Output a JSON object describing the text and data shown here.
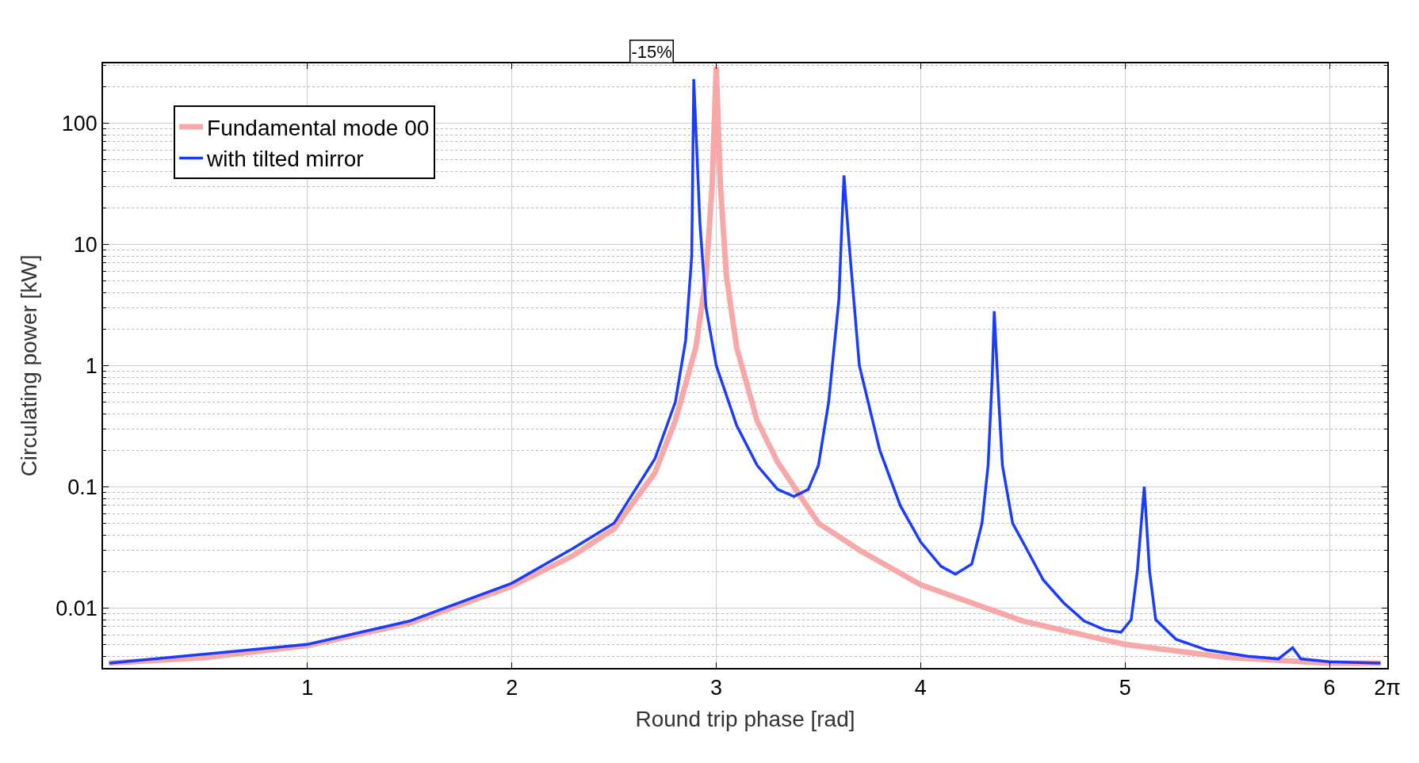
{
  "chart_data": {
    "type": "line",
    "xlabel": "Round trip phase [rad]",
    "ylabel": "Circulating power [kW]",
    "log": "y",
    "grid": true,
    "legend": "top left",
    "line_style": "solid",
    "marker": "none",
    "xlim": [
      0,
      6.283
    ],
    "xticks": [
      1,
      2,
      3,
      4,
      5,
      6,
      {
        "value": 6.283,
        "label": "2π"
      }
    ],
    "ylim": [
      0.0032,
      310
    ],
    "yticks": [
      0.01,
      0.1,
      1,
      10,
      100
    ],
    "annotations": [
      "-15%"
    ],
    "series": [
      {
        "name": "Fundamental mode 00",
        "color": "#f7a8a8",
        "x": [
          0.03,
          0.5,
          1.0,
          1.5,
          2.0,
          2.3,
          2.5,
          2.7,
          2.8,
          2.9,
          2.95,
          2.98,
          3.0,
          3.02,
          3.05,
          3.1,
          3.2,
          3.3,
          3.5,
          3.7,
          4.0,
          4.5,
          5.0,
          5.5,
          6.0,
          6.25
        ],
        "values": [
          0.0035,
          0.0039,
          0.0049,
          0.0075,
          0.0151,
          0.027,
          0.045,
          0.13,
          0.35,
          1.4,
          5.4,
          31,
          290,
          31,
          5.4,
          1.4,
          0.35,
          0.16,
          0.05,
          0.03,
          0.0155,
          0.0078,
          0.005,
          0.0039,
          0.0035,
          0.0035
        ]
      },
      {
        "name": "with tilted mirror",
        "color": "#1a3cff",
        "x": [
          0.03,
          1.0,
          1.5,
          2.0,
          2.3,
          2.5,
          2.7,
          2.8,
          2.85,
          2.88,
          2.89,
          2.92,
          2.95,
          3.0,
          3.1,
          3.2,
          3.3,
          3.38,
          3.45,
          3.5,
          3.55,
          3.6,
          3.615,
          3.625,
          3.65,
          3.7,
          3.8,
          3.9,
          4.0,
          4.1,
          4.17,
          4.25,
          4.3,
          4.33,
          4.35,
          4.36,
          4.38,
          4.4,
          4.45,
          4.5,
          4.6,
          4.7,
          4.8,
          4.9,
          4.98,
          5.03,
          5.06,
          5.094,
          5.12,
          5.15,
          5.25,
          5.4,
          5.6,
          5.75,
          5.82,
          5.86,
          6.0,
          6.25
        ],
        "values": [
          0.0035,
          0.005,
          0.0078,
          0.016,
          0.031,
          0.05,
          0.17,
          0.5,
          1.6,
          8,
          230,
          15,
          3,
          1.0,
          0.32,
          0.15,
          0.095,
          0.083,
          0.095,
          0.15,
          0.5,
          3.5,
          15,
          37,
          10,
          1.0,
          0.2,
          0.07,
          0.035,
          0.022,
          0.019,
          0.023,
          0.05,
          0.15,
          0.8,
          2.8,
          0.6,
          0.15,
          0.05,
          0.035,
          0.017,
          0.011,
          0.0078,
          0.0066,
          0.0063,
          0.008,
          0.02,
          0.1,
          0.02,
          0.008,
          0.0055,
          0.0045,
          0.004,
          0.0038,
          0.0047,
          0.0038,
          0.0036,
          0.0035
        ]
      }
    ]
  }
}
